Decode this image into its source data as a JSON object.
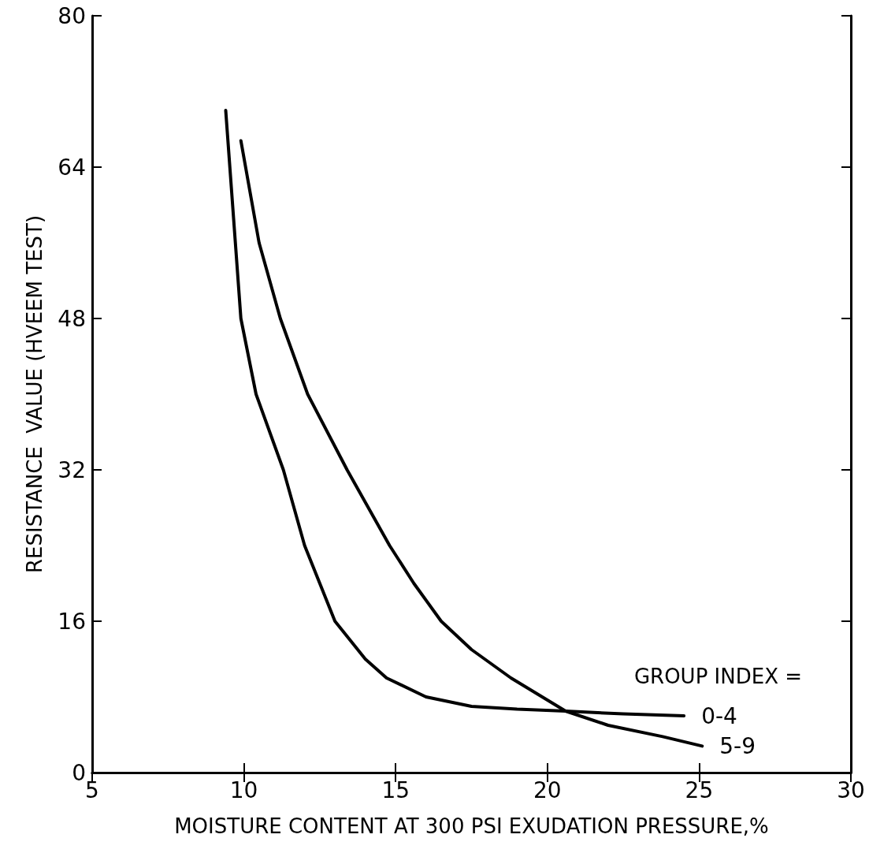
{
  "chart_data": {
    "type": "line",
    "xlabel": "MOISTURE CONTENT AT 300 PSI EXUDATION PRESSURE,%",
    "ylabel": "RESISTANCE  VALUE (HVEEM TEST)",
    "legend_title": "GROUP INDEX =",
    "series": [
      {
        "name": "0-4",
        "color": "#000000",
        "x": [
          9.4,
          9.9,
          10.4,
          11.3,
          12.0,
          13.0,
          14.0,
          14.7,
          16.0,
          17.5,
          19.0,
          20.6,
          22.5,
          24.5
        ],
        "values": [
          70,
          48,
          40,
          32,
          24,
          16,
          12,
          10,
          8,
          7,
          6.7,
          6.5,
          6.2,
          6.0
        ]
      },
      {
        "name": "5-9",
        "color": "#000000",
        "x": [
          9.9,
          10.5,
          11.2,
          12.1,
          13.4,
          14.8,
          15.6,
          16.5,
          17.5,
          18.8,
          20.6,
          22.0,
          23.8,
          25.1
        ],
        "values": [
          66.8,
          56,
          48,
          40,
          32,
          24,
          20,
          16,
          13,
          10,
          6.5,
          5.0,
          3.8,
          2.8
        ]
      }
    ],
    "xlim": [
      5,
      30
    ],
    "xticks": [
      5,
      10,
      15,
      20,
      25,
      30
    ],
    "ylim": [
      0,
      80
    ],
    "yticks": [
      0,
      16,
      32,
      48,
      64,
      80
    ],
    "grid": false,
    "marker": "none",
    "line_style": "solid"
  }
}
